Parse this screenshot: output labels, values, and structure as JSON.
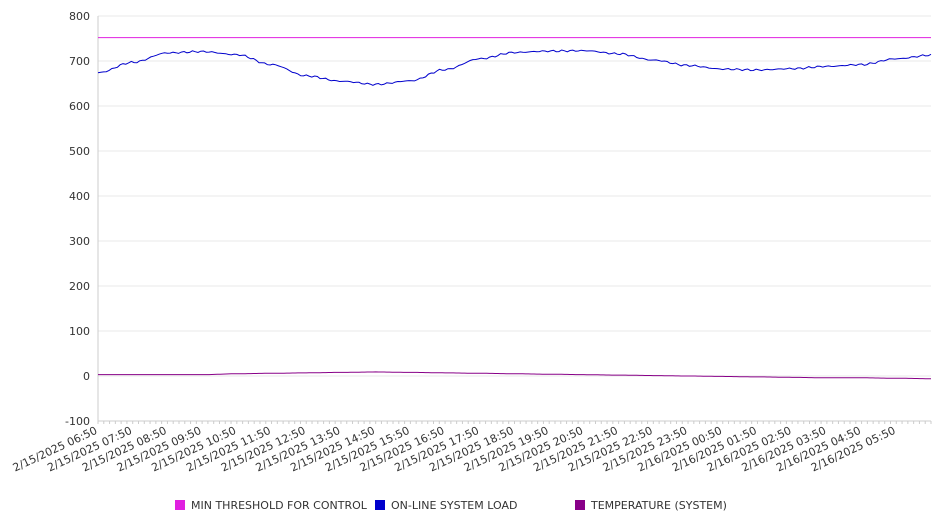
{
  "chart_data": {
    "type": "line",
    "title": "",
    "xlabel": "",
    "ylabel": "",
    "ylim": [
      -100,
      800
    ],
    "yticks": [
      -100,
      0,
      100,
      200,
      300,
      400,
      500,
      600,
      700,
      800
    ],
    "grid": true,
    "legend_position": "bottom",
    "x_tick_labels": [
      "2/15/2025 06:50",
      "2/15/2025 07:50",
      "2/15/2025 08:50",
      "2/15/2025 09:50",
      "2/15/2025 10:50",
      "2/15/2025 11:50",
      "2/15/2025 12:50",
      "2/15/2025 13:50",
      "2/15/2025 14:50",
      "2/15/2025 15:50",
      "2/15/2025 16:50",
      "2/15/2025 17:50",
      "2/15/2025 18:50",
      "2/15/2025 19:50",
      "2/15/2025 20:50",
      "2/15/2025 21:50",
      "2/15/2025 22:50",
      "2/15/2025 23:50",
      "2/16/2025 00:50",
      "2/16/2025 01:50",
      "2/16/2025 02:50",
      "2/16/2025 03:50",
      "2/16/2025 04:50",
      "2/16/2025 05:50"
    ],
    "x": [
      "2/15/2025 06:50",
      "2/15/2025 07:50",
      "2/15/2025 08:50",
      "2/15/2025 09:50",
      "2/15/2025 10:50",
      "2/15/2025 11:50",
      "2/15/2025 12:50",
      "2/15/2025 13:50",
      "2/15/2025 14:50",
      "2/15/2025 15:50",
      "2/15/2025 16:50",
      "2/15/2025 17:50",
      "2/15/2025 18:50",
      "2/15/2025 19:50",
      "2/15/2025 20:50",
      "2/15/2025 21:50",
      "2/15/2025 22:50",
      "2/15/2025 23:50",
      "2/16/2025 00:50",
      "2/16/2025 01:50",
      "2/16/2025 02:50",
      "2/16/2025 03:50",
      "2/16/2025 04:50",
      "2/16/2025 05:50",
      "2/16/2025 06:50"
    ],
    "series": [
      {
        "name": "MIN THRESHOLD FOR CONTROL",
        "color": "#e020e0",
        "values": [
          752,
          752,
          752,
          752,
          752,
          752,
          752,
          752,
          752,
          752,
          752,
          752,
          752,
          752,
          752,
          752,
          752,
          752,
          752,
          752,
          752,
          752,
          752,
          752,
          752
        ]
      },
      {
        "name": "ON-LINE SYSTEM LOAD",
        "color": "#0000cc",
        "values": [
          674,
          697,
          718,
          721,
          714,
          692,
          667,
          655,
          648,
          656,
          681,
          705,
          719,
          722,
          723,
          716,
          702,
          690,
          682,
          680,
          683,
          688,
          692,
          705,
          713
        ]
      },
      {
        "name": "TEMPERATURE (SYSTEM)",
        "color": "#880088",
        "values": [
          3,
          3,
          3,
          3,
          5,
          6,
          7,
          8,
          9,
          8,
          7,
          6,
          5,
          4,
          3,
          2,
          1,
          0,
          -1,
          -2,
          -3,
          -4,
          -4,
          -5,
          -6
        ]
      }
    ]
  }
}
